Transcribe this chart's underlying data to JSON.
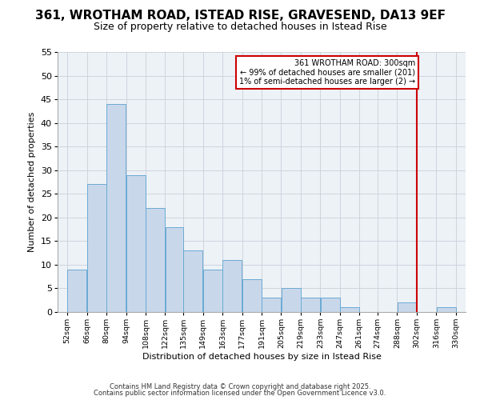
{
  "title": "361, WROTHAM ROAD, ISTEAD RISE, GRAVESEND, DA13 9EF",
  "subtitle": "Size of property relative to detached houses in Istead Rise",
  "xlabel": "Distribution of detached houses by size in Istead Rise",
  "ylabel": "Number of detached properties",
  "bar_left_edges": [
    52,
    66,
    80,
    94,
    108,
    122,
    135,
    149,
    163,
    177,
    191,
    205,
    219,
    233,
    247,
    261,
    274,
    288,
    302,
    316
  ],
  "bar_heights": [
    9,
    27,
    44,
    29,
    22,
    18,
    13,
    9,
    11,
    7,
    3,
    5,
    3,
    3,
    1,
    0,
    0,
    2,
    0,
    1
  ],
  "bar_widths": [
    14,
    14,
    14,
    14,
    14,
    13,
    14,
    14,
    14,
    14,
    14,
    14,
    14,
    14,
    14,
    13,
    14,
    14,
    14,
    14
  ],
  "bar_facecolor": "#c8d8ea",
  "bar_edgecolor": "#6aaad4",
  "tick_labels": [
    "52sqm",
    "66sqm",
    "80sqm",
    "94sqm",
    "108sqm",
    "122sqm",
    "135sqm",
    "149sqm",
    "163sqm",
    "177sqm",
    "191sqm",
    "205sqm",
    "219sqm",
    "233sqm",
    "247sqm",
    "261sqm",
    "274sqm",
    "288sqm",
    "302sqm",
    "316sqm",
    "330sqm"
  ],
  "tick_positions": [
    52,
    66,
    80,
    94,
    108,
    122,
    135,
    149,
    163,
    177,
    191,
    205,
    219,
    233,
    247,
    261,
    274,
    288,
    302,
    316,
    330
  ],
  "ylim": [
    0,
    55
  ],
  "xlim": [
    45,
    337
  ],
  "vline_x": 302,
  "vline_color": "#cc0000",
  "annotation_title": "361 WROTHAM ROAD: 300sqm",
  "annotation_line1": "← 99% of detached houses are smaller (201)",
  "annotation_line2": "1% of semi-detached houses are larger (2) →",
  "annotation_box_edgecolor": "#cc0000",
  "grid_color": "#c8d0d8",
  "bg_color": "#edf2f7",
  "footer1": "Contains HM Land Registry data © Crown copyright and database right 2025.",
  "footer2": "Contains public sector information licensed under the Open Government Licence v3.0.",
  "title_fontsize": 11,
  "subtitle_fontsize": 9,
  "yticks": [
    0,
    5,
    10,
    15,
    20,
    25,
    30,
    35,
    40,
    45,
    50,
    55
  ]
}
